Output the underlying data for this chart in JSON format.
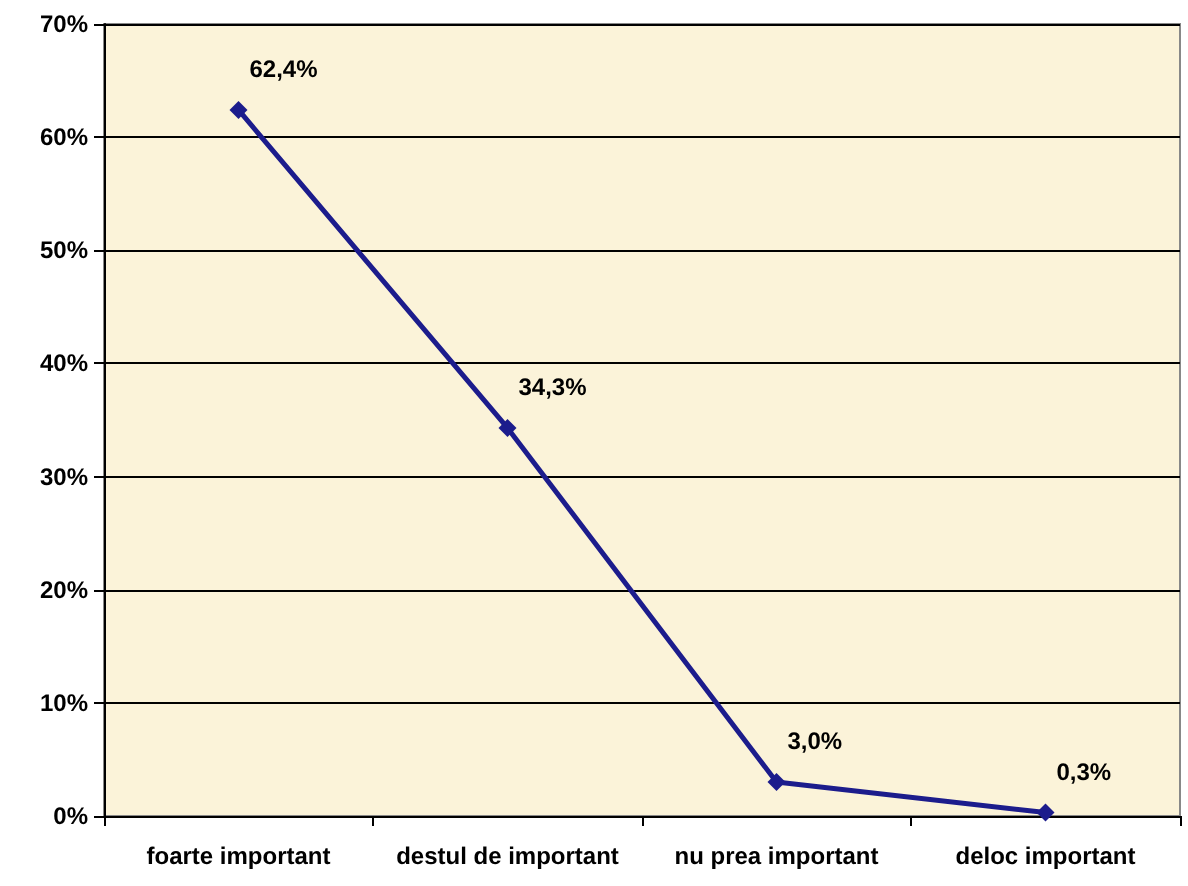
{
  "chart_data": {
    "type": "line",
    "categories": [
      "foarte important",
      "destul de important",
      "nu prea important",
      "deloc important"
    ],
    "series": [
      {
        "color": "#1c1c8c",
        "values": [
          62.4,
          34.3,
          3.0,
          0.3
        ],
        "value_labels": [
          "62,4%",
          "34,3%",
          "3,0%",
          "0,3%"
        ]
      }
    ],
    "ylim": [
      0,
      70
    ],
    "yticks": [
      {
        "value": 0,
        "label": "0%"
      },
      {
        "value": 10,
        "label": "10%"
      },
      {
        "value": 20,
        "label": "20%"
      },
      {
        "value": 30,
        "label": "30%"
      },
      {
        "value": 40,
        "label": "40%"
      },
      {
        "value": 50,
        "label": "50%"
      },
      {
        "value": 60,
        "label": "60%"
      },
      {
        "value": 70,
        "label": "70%"
      }
    ],
    "grid": "y",
    "marker": "diamond",
    "line_style": "solid"
  }
}
